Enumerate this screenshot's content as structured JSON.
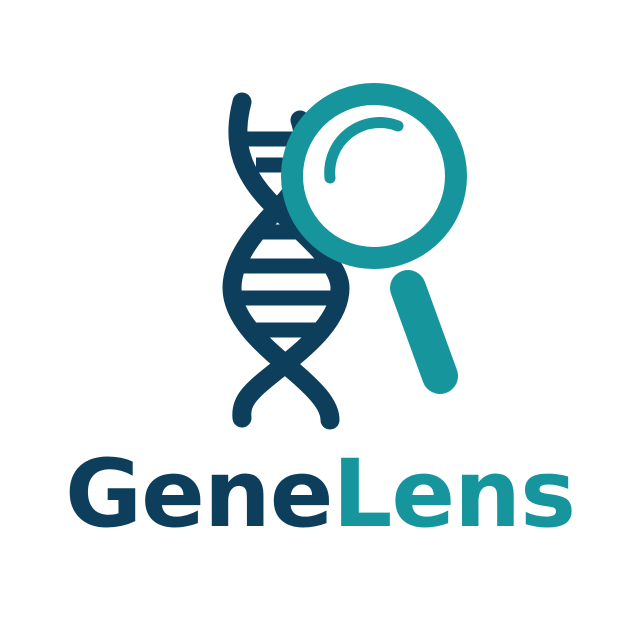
{
  "brand": {
    "name_part_1": "Gene",
    "name_part_2": "Lens",
    "icon_dna": "dna-helix-icon",
    "icon_magnifier": "magnifying-glass-icon"
  },
  "colors": {
    "navy": "#0d3f5c",
    "teal": "#16969c",
    "background": "#ffffff"
  }
}
